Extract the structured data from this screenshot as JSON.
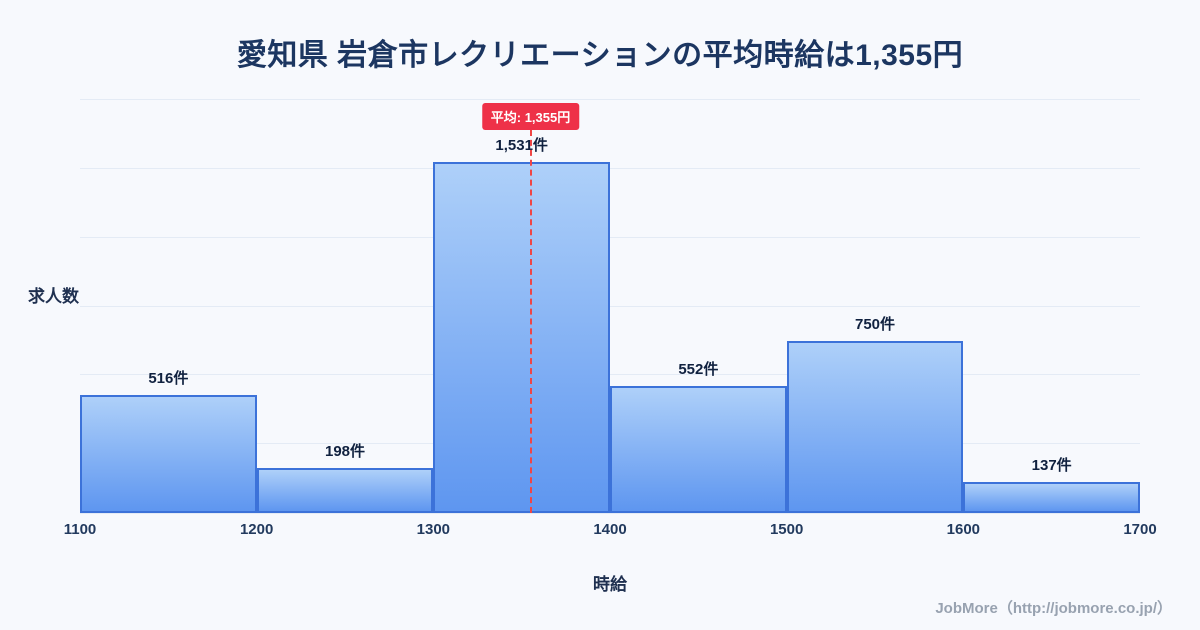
{
  "header": {
    "title": "愛知県 岩倉市レクリエーションの平均時給は1,355円"
  },
  "chart_data": {
    "type": "bar",
    "subtype": "histogram",
    "bin_edges": [
      1100,
      1200,
      1300,
      1400,
      1500,
      1600,
      1700
    ],
    "x_ticks": [
      "1100",
      "1200",
      "1300",
      "1400",
      "1500",
      "1600",
      "1700"
    ],
    "values": [
      516,
      198,
      1531,
      552,
      750,
      137
    ],
    "value_labels": [
      "516件",
      "198件",
      "1,531件",
      "552件",
      "750件",
      "137件"
    ],
    "mean": 1355,
    "mean_label": "平均: 1,355円",
    "xlabel": "時給",
    "ylabel": "求人数",
    "ylim": [
      0,
      1800
    ],
    "grid_step": 300,
    "grid": true,
    "legend": "none",
    "colors": {
      "background": "#f7f9fd",
      "bar_fill_top": "#aed0f9",
      "bar_fill_bottom": "#5e96f0",
      "bar_border": "#3c72d9",
      "mean_line": "#f04545",
      "badge_background": "#ee3148",
      "badge_text": "#ffffff",
      "title_text": "#1c3661",
      "grid_line": "#e4ebf5"
    }
  },
  "footer": {
    "credit": "JobMore（http://jobmore.co.jp/）"
  }
}
